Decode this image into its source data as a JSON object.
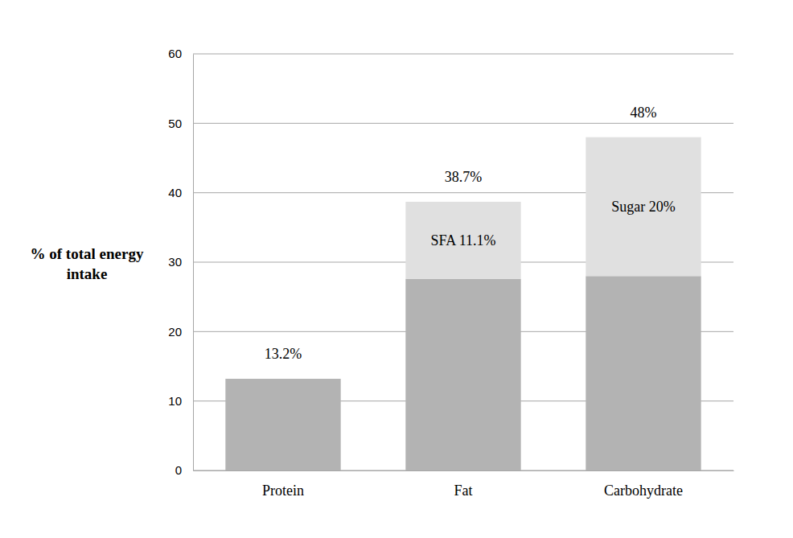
{
  "chart_data": {
    "type": "bar",
    "stacked": true,
    "grid": true,
    "data_labels": true,
    "y_label": "% of total energy intake",
    "categories": [
      "Protein",
      "Fat",
      "Carbohydrate"
    ],
    "series": [
      {
        "color": "#b3b3b3",
        "values": [
          13.2,
          27.6,
          28
        ]
      },
      {
        "color": "#e0e0e0",
        "values": [
          null,
          11.1,
          20
        ],
        "value_labels": [
          null,
          "SFA 11.1%",
          "Sugar 20%"
        ]
      }
    ],
    "totals": {
      "values": [
        13.2,
        38.7,
        48
      ],
      "value_labels": [
        "13.2%",
        "38.7%",
        "48%"
      ]
    },
    "ylim": [
      0,
      60
    ],
    "yticks": [
      0,
      10,
      20,
      30,
      40,
      50,
      60
    ]
  }
}
